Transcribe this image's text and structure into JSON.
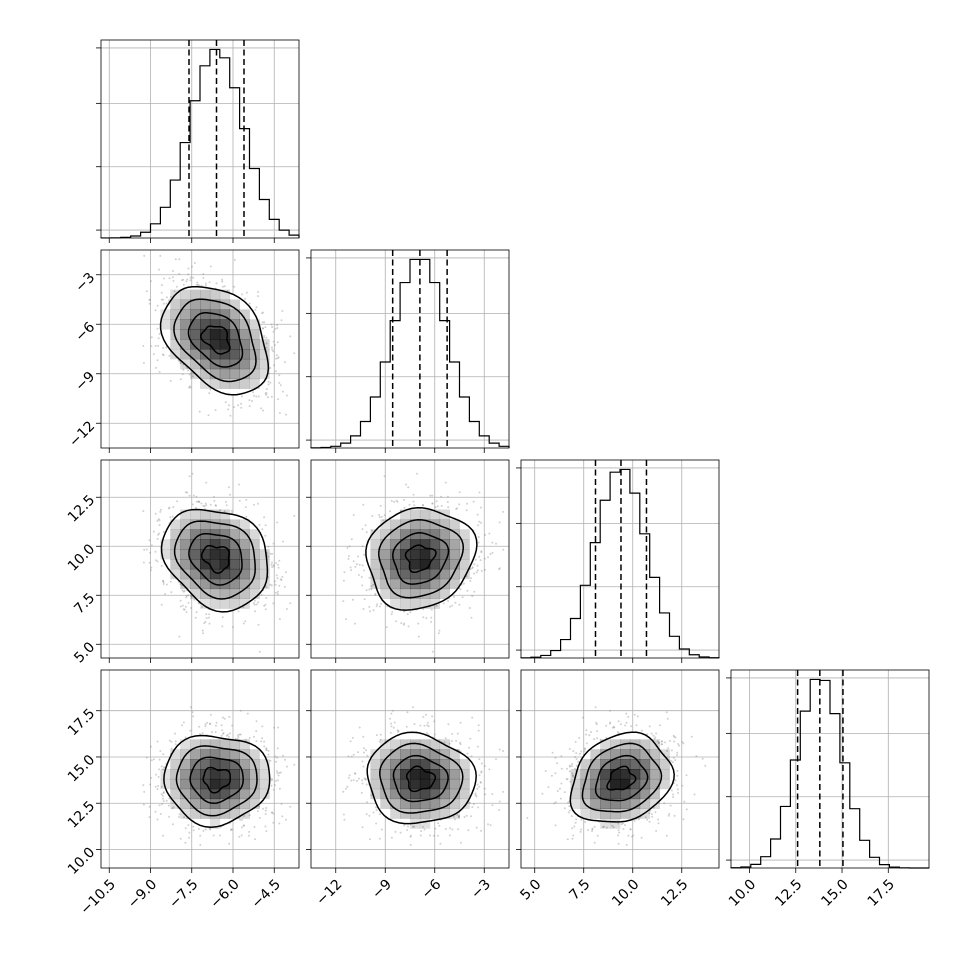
{
  "chart_data": {
    "type": "corner",
    "title": "",
    "parameters": [
      {
        "mean": -6.6,
        "sd": 0.97,
        "range": [
          -10.8,
          -3.6
        ],
        "ticks": [
          "−10.5",
          "−9.0",
          "−7.5",
          "−6.0",
          "−4.5"
        ],
        "tick_values": [
          -10.5,
          -9.0,
          -7.5,
          -6.0,
          -4.5
        ],
        "quantiles": [
          -7.6,
          -6.6,
          -5.6
        ]
      },
      {
        "mean": -6.9,
        "sd": 1.65,
        "range": [
          -13.5,
          -1.5
        ],
        "ticks": [
          "−12",
          "−9",
          "−6",
          "−3"
        ],
        "tick_values": [
          -12,
          -9,
          -6,
          -3
        ],
        "quantiles": [
          -8.55,
          -6.9,
          -5.25
        ]
      },
      {
        "mean": 9.4,
        "sd": 1.3,
        "range": [
          4.3,
          14.4
        ],
        "ticks": [
          "5.0",
          "7.5",
          "10.0",
          "12.5"
        ],
        "tick_values": [
          5.0,
          7.5,
          10.0,
          12.5
        ],
        "quantiles": [
          8.1,
          9.4,
          10.7
        ]
      },
      {
        "mean": 13.8,
        "sd": 1.22,
        "range": [
          9.0,
          19.7
        ],
        "ticks": [
          "10.0",
          "12.5",
          "15.0",
          "17.5"
        ],
        "tick_values": [
          10.0,
          12.5,
          15.0,
          17.5
        ],
        "quantiles": [
          12.6,
          13.8,
          15.05
        ]
      }
    ],
    "correlations": {
      "0-1": -0.35,
      "0-2": -0.2,
      "0-3": 0.0,
      "1-2": 0.1,
      "1-3": -0.05,
      "2-3": 0.2
    },
    "histogram_bins": 20,
    "contour_levels": [
      0.12,
      0.39,
      0.68,
      0.86
    ],
    "grid": true,
    "colors": {
      "line": "#000000",
      "grid": "#b0b0b0",
      "density": "#000000",
      "points": "#8c8c8c"
    }
  }
}
